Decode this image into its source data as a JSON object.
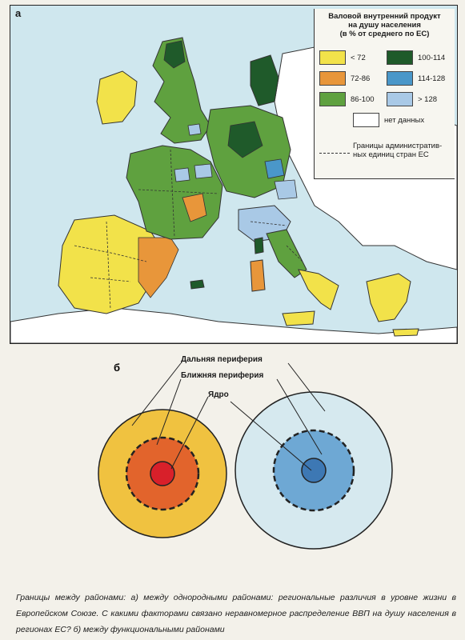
{
  "panel_a": {
    "letter": "а",
    "legend": {
      "title_lines": [
        "Валовой внутренний продукт",
        "на душу населения",
        "(в % от среднего по ЕС)"
      ],
      "classes": [
        {
          "label": "< 72",
          "color": "#f2e24a"
        },
        {
          "label": "72-86",
          "color": "#e8963a"
        },
        {
          "label": "86-100",
          "color": "#5fa13f"
        },
        {
          "label": "100-114",
          "color": "#1f5a2a"
        },
        {
          "label": "114-128",
          "color": "#4a97c9"
        },
        {
          "label": "> 128",
          "color": "#a9c9e6"
        },
        {
          "label": "нет данных",
          "color": "#ffffff"
        }
      ],
      "borders_label": "Границы административ-ных единиц стран ЕС"
    },
    "colors": {
      "sea": "#cfe7ee",
      "non_eu": "#ffffff",
      "coast": "#333333"
    }
  },
  "panel_b": {
    "letter": "б",
    "labels": {
      "far": "Дальняя периферия",
      "near": "Ближняя периферия",
      "core": "Ядро"
    },
    "colors": {
      "left_far": "#f0c240",
      "left_near": "#e2642c",
      "left_core": "#d8202a",
      "right_far": "#d6e9ef",
      "right_near": "#6ea8d4",
      "right_core": "#3d78b4"
    }
  },
  "caption": "Границы между районами: а) между однородными районами: региональные различия в уровне жизни в Европейском Союзе. С какими факторами связано неравномерное распределение ВВП на душу населения в регионах ЕС? б) между функциональными районами"
}
